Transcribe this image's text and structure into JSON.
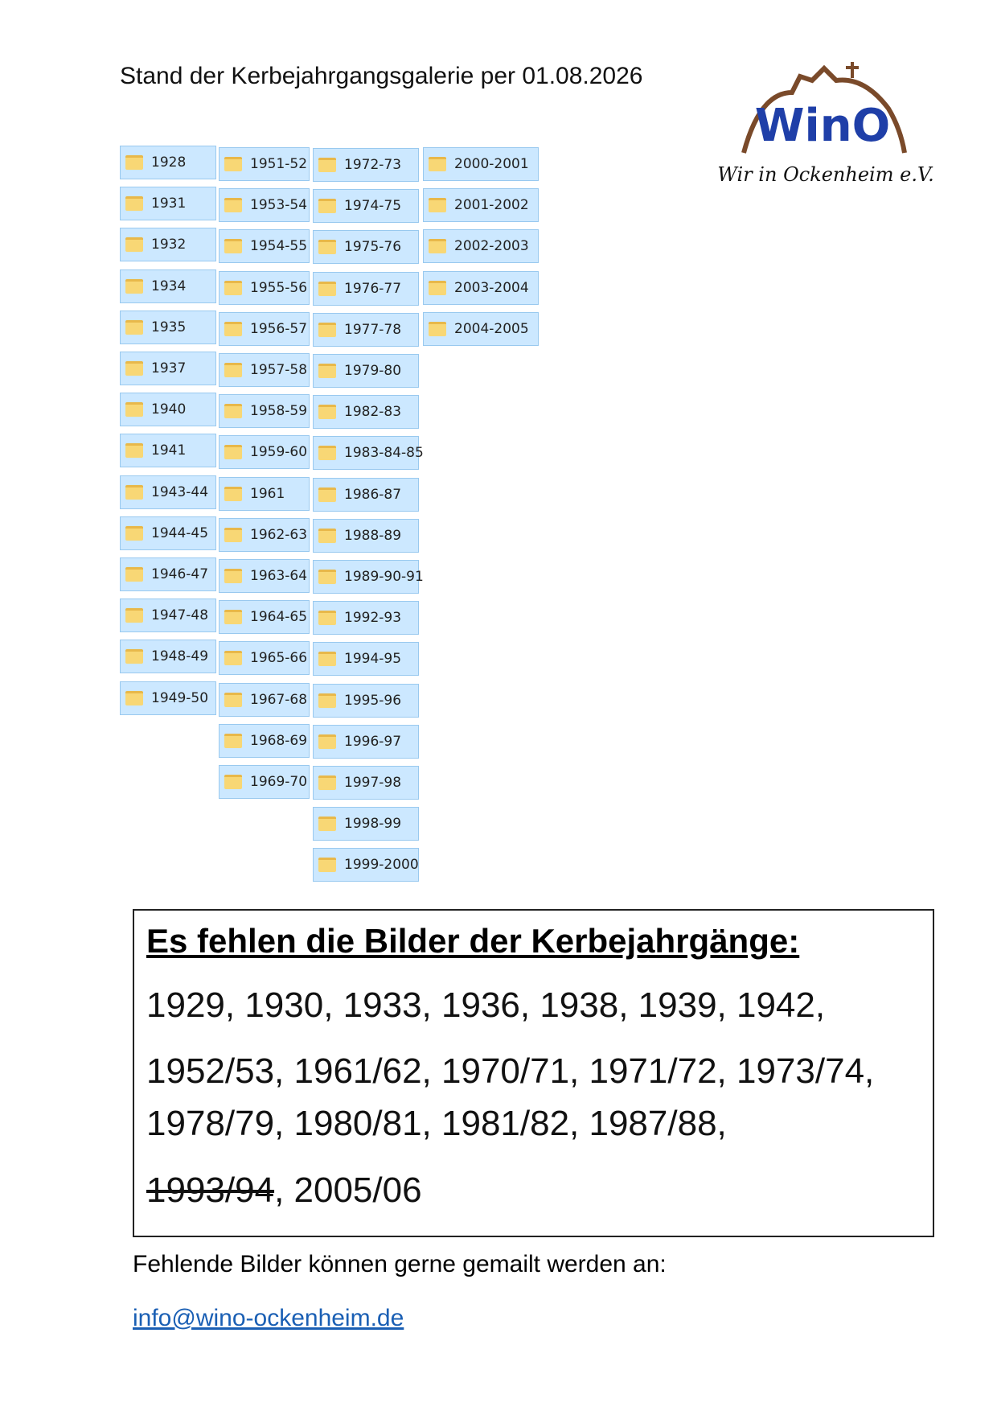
{
  "header": {
    "title": "Stand der Kerbejahrgangsgalerie per 01.08.2026"
  },
  "logo": {
    "mark": "WinO",
    "name": "Wir in Ockenheim e.V."
  },
  "folders": [
    [
      "1928",
      "1931",
      "1932",
      "1934",
      "1935",
      "1937",
      "1940",
      "1941",
      "1943-44",
      "1944-45",
      "1946-47",
      "1947-48",
      "1948-49",
      "1949-50"
    ],
    [
      "1951-52",
      "1953-54",
      "1954-55",
      "1955-56",
      "1956-57",
      "1957-58",
      "1958-59",
      "1959-60",
      "1961",
      "1962-63",
      "1963-64",
      "1964-65",
      "1965-66",
      "1967-68",
      "1968-69",
      "1969-70"
    ],
    [
      "1972-73",
      "1974-75",
      "1975-76",
      "1976-77",
      "1977-78",
      "1979-80",
      "1982-83",
      "1983-84-85",
      "1986-87",
      "1988-89",
      "1989-90-91",
      "1992-93",
      "1994-95",
      "1995-96",
      "1996-97",
      "1997-98",
      "1998-99",
      "1999-2000"
    ],
    [
      "2000-2001",
      "2001-2002",
      "2002-2003",
      "2003-2004",
      "2004-2005"
    ]
  ],
  "missing": {
    "title": "Es fehlen die Bilder der Kerbejahrgänge:",
    "lines": [
      "1929, 1930, 1933, 1936, 1938, 1939, 1942,",
      "1952/53, 1961/62, 1970/71, 1971/72, 1973/74,",
      "1978/79, 1980/81, 1981/82, 1987/88,"
    ],
    "struck": "1993/94",
    "rest": ", 2005/06"
  },
  "footer": {
    "text": "Fehlende Bilder können gerne gemailt werden an:",
    "email": "info@wino-ockenheim.de"
  }
}
